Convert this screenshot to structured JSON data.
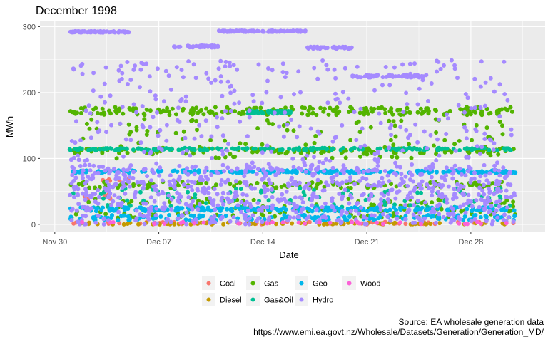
{
  "chart_data": {
    "type": "scatter",
    "title": "December 1998",
    "xlabel": "Date",
    "ylabel": "MWh",
    "x_range": [
      "1998-11-29",
      "1999-01-02"
    ],
    "x_ticks": [
      {
        "date": "1998-11-30",
        "label": "Nov 30"
      },
      {
        "date": "1998-12-07",
        "label": "Dec 07"
      },
      {
        "date": "1998-12-14",
        "label": "Dec 14"
      },
      {
        "date": "1998-12-21",
        "label": "Dec 21"
      },
      {
        "date": "1998-12-28",
        "label": "Dec 28"
      }
    ],
    "ylim": [
      -12,
      308
    ],
    "y_ticks": [
      0,
      100,
      200,
      300
    ],
    "background": "#ebebeb",
    "grid": true,
    "legend_position": "bottom",
    "series": [
      {
        "name": "Coal",
        "color": "#F8766D",
        "segments": [
          {
            "from": "1998-12-01",
            "to": "1998-12-31",
            "level": 2,
            "spread": 2,
            "n": 60
          },
          {
            "from": "1998-12-01",
            "to": "1998-12-05",
            "level": 42,
            "spread": 4,
            "n": 8
          },
          {
            "from": "1998-12-03",
            "to": "1998-12-05",
            "level": 67,
            "spread": 3,
            "n": 6
          }
        ]
      },
      {
        "name": "Diesel",
        "color": "#C49A00",
        "segments": [
          {
            "from": "1998-12-01",
            "to": "1998-12-31",
            "level": 1,
            "spread": 1.5,
            "n": 80
          }
        ]
      },
      {
        "name": "Gas",
        "color": "#53B400",
        "segments": [
          {
            "from": "1998-12-01",
            "to": "1998-12-31",
            "level": 172,
            "spread": 6,
            "n": 220
          },
          {
            "from": "1998-12-01",
            "to": "1998-12-31",
            "level": 112,
            "spread": 4,
            "n": 120
          },
          {
            "from": "1998-12-01",
            "to": "1998-12-31",
            "level": 60,
            "spread": 5,
            "n": 130
          },
          {
            "from": "1998-12-01",
            "to": "1998-12-31",
            "level": 25,
            "spread": 15,
            "n": 150
          },
          {
            "from": "1998-12-01",
            "to": "1998-12-31",
            "level": 130,
            "spread": 30,
            "n": 110
          }
        ]
      },
      {
        "name": "Gas&Oil",
        "color": "#00C094",
        "segments": [
          {
            "from": "1998-12-01",
            "to": "1998-12-31",
            "level": 114,
            "spread": 2,
            "n": 180
          },
          {
            "from": "1998-12-13",
            "to": "1998-12-16",
            "level": 170,
            "spread": 2,
            "n": 45
          },
          {
            "from": "1998-12-01",
            "to": "1998-12-31",
            "level": 40,
            "spread": 15,
            "n": 90
          }
        ]
      },
      {
        "name": "Geo",
        "color": "#00B6EB",
        "segments": [
          {
            "from": "1998-12-01",
            "to": "1998-12-31",
            "level": 80,
            "spread": 2,
            "n": 240
          },
          {
            "from": "1998-12-01",
            "to": "1998-12-31",
            "level": 23,
            "spread": 3,
            "n": 200
          },
          {
            "from": "1998-12-01",
            "to": "1998-12-31",
            "level": 10,
            "spread": 4,
            "n": 150
          }
        ]
      },
      {
        "name": "Hydro",
        "color": "#A58AFF",
        "segments": [
          {
            "from": "1998-12-01",
            "to": "1998-12-05",
            "level": 292,
            "spread": 1,
            "n": 70
          },
          {
            "from": "1998-12-11",
            "to": "1998-12-17",
            "level": 293,
            "spread": 1,
            "n": 90
          },
          {
            "from": "1998-12-08",
            "to": "1998-12-11",
            "level": 270,
            "spread": 1.5,
            "n": 45
          },
          {
            "from": "1998-12-17",
            "to": "1998-12-20",
            "level": 268,
            "spread": 1.5,
            "n": 45
          },
          {
            "from": "1998-12-20",
            "to": "1998-12-25",
            "level": 225,
            "spread": 2,
            "n": 60
          },
          {
            "from": "1998-12-01",
            "to": "1998-12-31",
            "level": 45,
            "spread": 45,
            "n": 650
          },
          {
            "from": "1998-12-01",
            "to": "1998-12-31",
            "level": 140,
            "spread": 110,
            "n": 420
          }
        ]
      },
      {
        "name": "Wood",
        "color": "#FB61D7",
        "segments": [
          {
            "from": "1998-12-01",
            "to": "1998-12-31",
            "level": 2,
            "spread": 1.5,
            "n": 30
          }
        ]
      }
    ]
  },
  "caption": {
    "line1": "Source: EA wholesale generation data",
    "line2": "https://www.emi.ea.govt.nz/Wholesale/Datasets/Generation/Generation_MD/"
  }
}
